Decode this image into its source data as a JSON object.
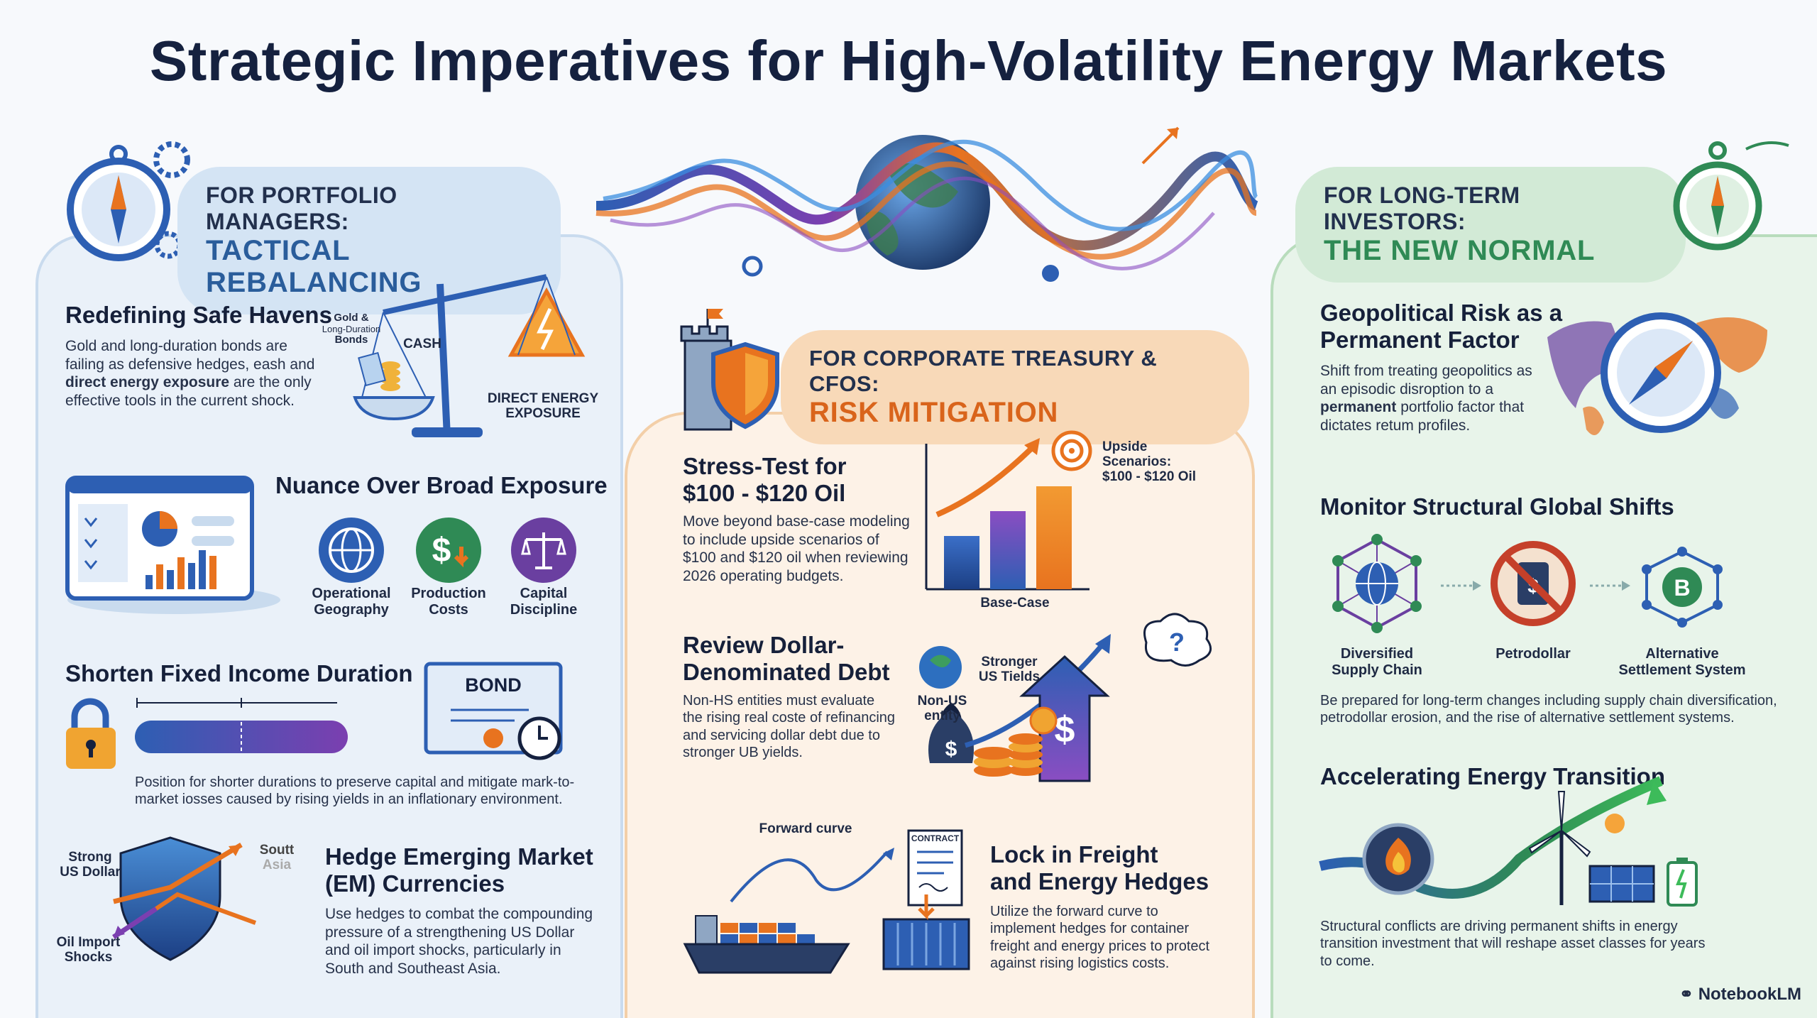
{
  "title": "Strategic Imperatives for High-Volatility Energy Markets",
  "colors": {
    "blue": "#2d5fb3",
    "orange": "#e8731f",
    "green": "#2f8a55",
    "navy": "#15213f"
  },
  "left": {
    "header_small": "FOR PORTFOLIO MANAGERS:",
    "header_big": "TACTICAL REBALANCING",
    "safe_havens": {
      "heading": "Redefining Safe Havens",
      "body_1": "Gold and long-duration bonds are",
      "body_2": "failing as defensive hedges, eash and",
      "body_3_bold": "direct energy exposure",
      "body_3_rest": " are the only",
      "body_4": "effective tools in the current shock.",
      "label_gold": "Gold &",
      "label_longdur": "Long-Duration",
      "label_bonds": "Bonds",
      "label_cash": "CASH",
      "label_direct_1": "DIRECT ENERGY",
      "label_direct_2": "EXPOSURE"
    },
    "nuance": {
      "heading": "Nuance Over Broad Exposure",
      "items": [
        {
          "l1": "Operational",
          "l2": "Geography",
          "icon": "globe-icon"
        },
        {
          "l1": "Production",
          "l2": "Costs",
          "icon": "dollar-down-icon"
        },
        {
          "l1": "Capital",
          "l2": "Discipline",
          "icon": "scales-icon"
        }
      ]
    },
    "duration": {
      "heading": "Shorten Fixed Income Duration",
      "bond_label": "BOND",
      "body_1": "Position for shorter durations to preserve capital and mitigate mark-to-",
      "body_2": "market iosses caused by rising yields in an inflationary environment."
    },
    "em": {
      "heading_1": "Hedge Emerging Market",
      "heading_2": "(EM) Currencies",
      "label_usd_1": "Strong",
      "label_usd_2": "US Dollar",
      "label_asia_1": "Soutt",
      "label_asia_2": "Asia",
      "label_oil_1": "Oil Import",
      "label_oil_2": "Shocks",
      "body_1": "Use hedges to combat the compounding",
      "body_2": "pressure of a strengthening US Dollar",
      "body_3": "and oil import shocks, particularly in",
      "body_4": "South and Southeast Asia."
    }
  },
  "mid": {
    "header_small": "FOR CORPORATE TREASURY & CFOS:",
    "header_big": "RISK MITIGATION",
    "stress": {
      "heading_1": "Stress-Test for",
      "heading_2": "$100 - $120 Oil",
      "body_1": "Move beyond base-case modeling",
      "body_2": "to include upside scenarios of",
      "body_3": "$100 and $120 oil when reviewing",
      "body_4": "2026 operating budgets.",
      "label_upside_1": "Upside Scenarios:",
      "label_upside_2": "$100 - $120 Oil",
      "label_base": "Base-Case"
    },
    "debt": {
      "heading_1": "Review Dollar-",
      "heading_2": "Denominated Debt",
      "body_1": "Non-HS entities must evaluate",
      "body_2": "the rising real coste of refinancing",
      "body_3": "and servicing dollar debt due to",
      "body_4": "stronger UB yields.",
      "label_stronger_1": "Stronger",
      "label_stronger_2": "US Tields",
      "label_nonus_1": "Non-US",
      "label_nonus_2": "entity"
    },
    "freight": {
      "heading_1": "Lock in Freight",
      "heading_2": "and Energy Hedges",
      "label_forward": "Forward curve",
      "label_contract": "CONTRACT",
      "body_1": "Utilize the forward curve to",
      "body_2": "implement hedges for container",
      "body_3": "freight and energy prices to protect",
      "body_4": "against rising logistics costs."
    }
  },
  "right": {
    "header_small": "FOR LONG-TERM INVESTORS:",
    "header_big": "THE NEW NORMAL",
    "geo": {
      "heading_1": "Geopolitical Risk as a",
      "heading_2": "Permanent Factor",
      "body_1": "Shift from treating geopolitics as",
      "body_2": "an episodic disroption to a",
      "body_3_bold": "permanent",
      "body_3_rest": " portfolio factor that",
      "body_4": "dictates retum profiles."
    },
    "shifts": {
      "heading": "Monitor Structural Global Shifts",
      "items": [
        {
          "l1": "Diversified",
          "l2": "Supply Chain"
        },
        {
          "l1": "Petrodollar",
          "l2": ""
        },
        {
          "l1": "Alternative",
          "l2": "Settlement System"
        }
      ],
      "body_1": "Be prepared for long-term changes including supply chain diversification,",
      "body_2": "petrodollar erosion, and the rise of alternative settlement systems."
    },
    "transition": {
      "heading": "Accelerating Energy Transition",
      "body_1": "Structural conflicts are driving permanent shifts in energy",
      "body_2": "transition investment that will reshape asset classes for years",
      "body_3": "to come."
    }
  },
  "brand": "NotebookLM"
}
